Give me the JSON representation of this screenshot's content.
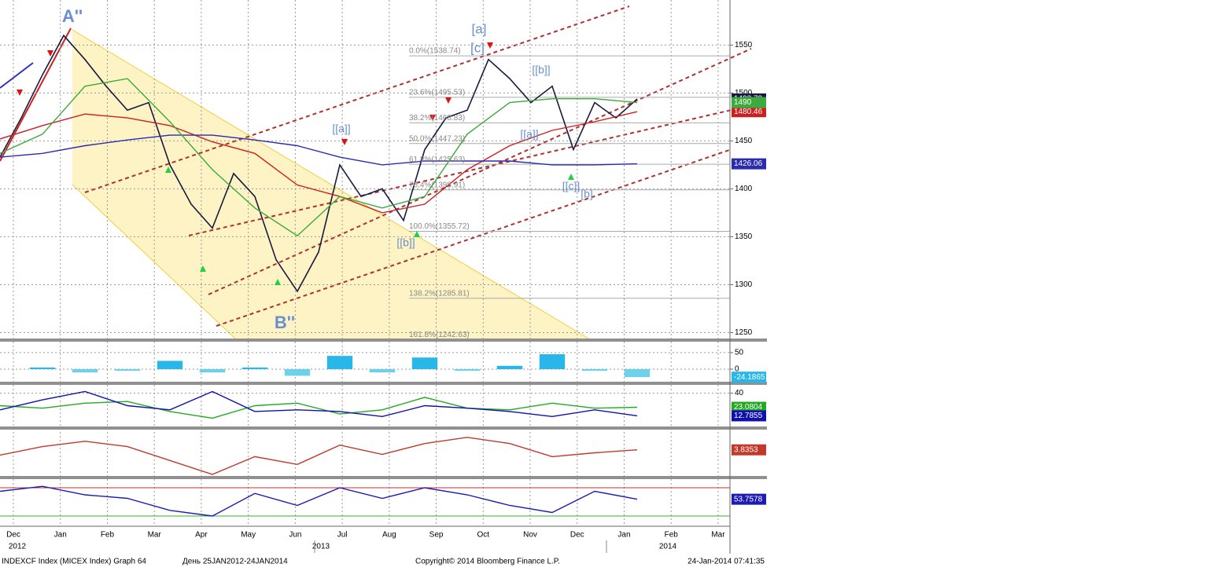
{
  "chart_data": [
    {
      "type": "line",
      "ylim": [
        1243,
        1597
      ],
      "yticks": [
        1250,
        1300,
        1350,
        1400,
        1450,
        1500,
        1550
      ],
      "grid": true,
      "series": [
        {
          "color": "#1a1a40",
          "values": [
            1433,
            1474,
            1519,
            1560,
            1535,
            1507,
            1482,
            1490,
            1425,
            1384,
            1359,
            1416,
            1392,
            1326,
            1293,
            1334,
            1425,
            1392,
            1400,
            1367,
            1441,
            1474,
            1482,
            1535,
            1515,
            1490,
            1507,
            1441,
            1490,
            1474,
            1493.79
          ]
        },
        {
          "color": "#cc1f1f",
          "values": [
            1452,
            1466,
            1478,
            1474,
            1466,
            1449,
            1437,
            1404,
            1392,
            1375,
            1384,
            1420,
            1445,
            1461,
            1470,
            1480.46
          ]
        },
        {
          "color": "#2b2bb0",
          "values": [
            1433,
            1437,
            1445,
            1451,
            1456,
            1456,
            1451,
            1445,
            1433,
            1425,
            1429,
            1429,
            1429,
            1425,
            1425,
            1426.06
          ]
        },
        {
          "color": "#3caa3c",
          "values": [
            1437,
            1457,
            1507,
            1515,
            1470,
            1420,
            1380,
            1351,
            1392,
            1380,
            1392,
            1457,
            1490,
            1494,
            1494,
            1490
          ]
        }
      ],
      "fib_levels": [
        {
          "value": 1538.74,
          "label": "0.0%(1538.74)"
        },
        {
          "value": 1495.53,
          "label": "23.6%(1495.53)"
        },
        {
          "value": 1468.83,
          "label": "38.2%(1468.83)"
        },
        {
          "value": 1447.23,
          "label": "50.0%(1447.23)"
        },
        {
          "value": 1425.63,
          "label": "61.8%(1425.63)"
        },
        {
          "value": 1398.91,
          "label": "76.4%(1398.91)"
        },
        {
          "value": 1355.72,
          "label": "100.0%(1355.72)"
        },
        {
          "value": 1285.81,
          "label": "138.2%(1285.81)"
        },
        {
          "value": 1242.63,
          "label": "161.8%(1242.63)"
        }
      ],
      "annotations": [
        "A''",
        "B''",
        "[a]",
        "[c]",
        "[[b]]",
        "[[a]]",
        "[[a]]",
        "[[b]]",
        "[[c]]",
        "[b]"
      ]
    },
    {
      "type": "bar",
      "ylim": [
        -38,
        83
      ],
      "yticks": [
        50,
        0
      ],
      "grid": true,
      "negative_color": "#6fd0ea",
      "series": [
        {
          "color": "#29b6e8",
          "values": [
            0,
            5,
            -10,
            -5,
            25,
            -10,
            5,
            -20,
            40,
            -10,
            35,
            -5,
            10,
            45,
            -5,
            -24.1865
          ]
        }
      ]
    },
    {
      "type": "line",
      "ylim": [
        0,
        50
      ],
      "yticks": [
        40
      ],
      "grid": true,
      "series": [
        {
          "color": "#22aa22",
          "values": [
            25,
            22,
            28,
            30,
            18,
            10,
            25,
            28,
            15,
            20,
            35,
            22,
            20,
            28,
            22,
            23.0804
          ]
        },
        {
          "color": "#1010b0",
          "values": [
            20,
            32,
            42,
            25,
            20,
            42,
            18,
            20,
            18,
            12,
            25,
            22,
            18,
            12,
            20,
            12.7855
          ]
        }
      ]
    },
    {
      "type": "line",
      "ylim": [
        -30,
        30
      ],
      "yticks": [],
      "grid": false,
      "series": [
        {
          "color": "#c0392b",
          "values": [
            -3,
            8,
            15,
            8,
            -10,
            -28,
            -5,
            -15,
            10,
            -2,
            12,
            20,
            12,
            -5,
            0,
            3.8353
          ]
        }
      ]
    },
    {
      "type": "line",
      "ylim": [
        20,
        80
      ],
      "yticks": [],
      "grid": false,
      "hlines": [
        70,
        30
      ],
      "series": [
        {
          "color": "#1c1cb4",
          "values": [
            65,
            72,
            60,
            55,
            38,
            30,
            62,
            45,
            70,
            55,
            70,
            60,
            45,
            35,
            65,
            53.7578
          ]
        }
      ]
    }
  ],
  "x_axis": {
    "months": [
      "Dec",
      "Jan",
      "Feb",
      "Mar",
      "Apr",
      "May",
      "Jun",
      "Jul",
      "Aug",
      "Sep",
      "Oct",
      "Nov",
      "Dec",
      "Jan",
      "Feb",
      "Mar"
    ],
    "years": [
      "2012",
      "2013",
      "2014"
    ]
  },
  "footer": {
    "security": "INDEXCF Index (MICEX Index) Graph 64",
    "range": "День 25JAN2012-24JAN2014",
    "copyright": "Copyright© 2014 Bloomberg Finance L.P.",
    "timestamp": "24-Jan-2014 07:41:35"
  }
}
